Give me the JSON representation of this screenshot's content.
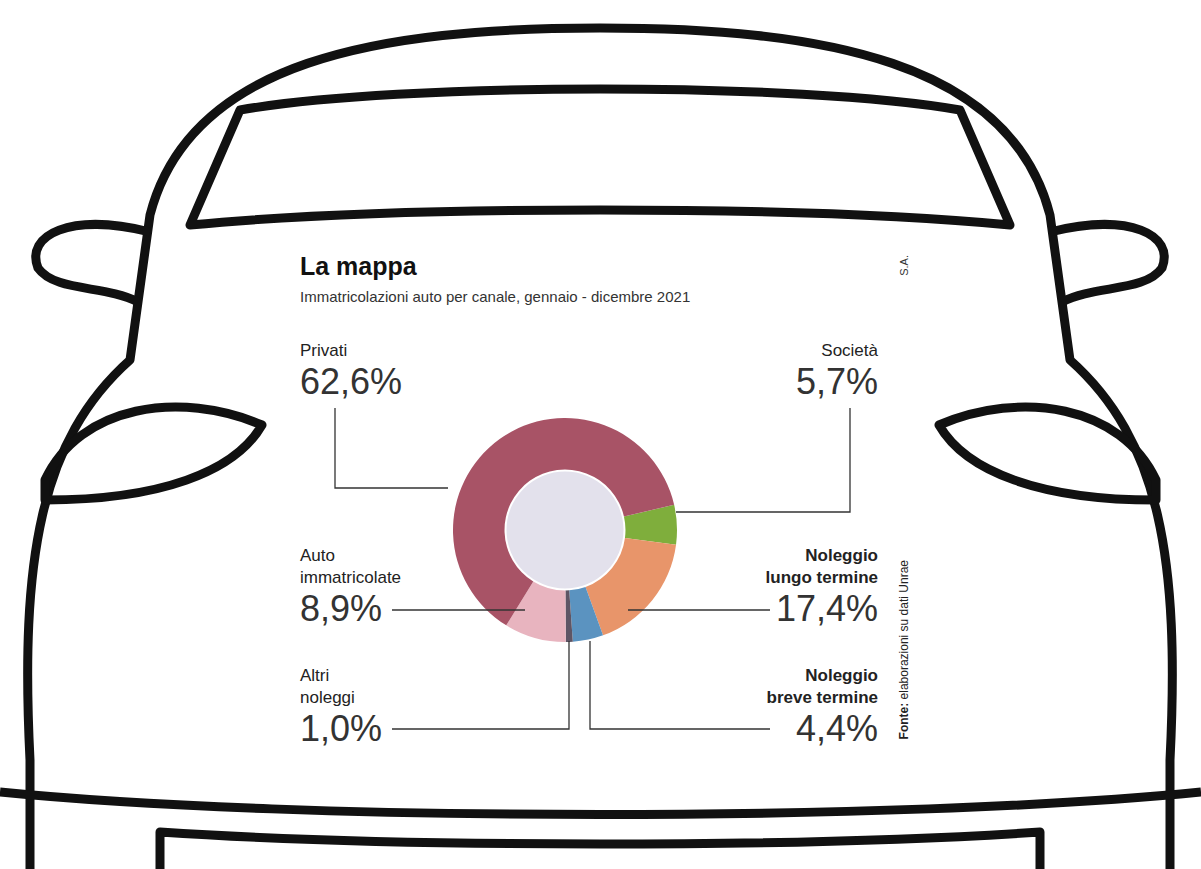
{
  "chart_data": {
    "type": "pie",
    "title": "La mappa",
    "subtitle": "Immatricolazioni auto per canale, gennaio - dicembre 2021",
    "credit": "S.A.",
    "source": "Fonte: elaborazioni su dati Unrae",
    "categories": [
      "Società",
      "Noleggio lungo termine",
      "Noleggio breve termine",
      "Altri noleggi",
      "Auto immatricolate",
      "Privati"
    ],
    "values": [
      5.7,
      17.4,
      4.4,
      1.0,
      8.9,
      62.6
    ],
    "value_labels": [
      "5,7%",
      "17,4%",
      "4,4%",
      "1,0%",
      "8,9%",
      "62,6%"
    ],
    "colors": [
      "#7fae3c",
      "#e8956a",
      "#5b93c0",
      "#5e5565",
      "#e8b4bf",
      "#a85366"
    ]
  }
}
